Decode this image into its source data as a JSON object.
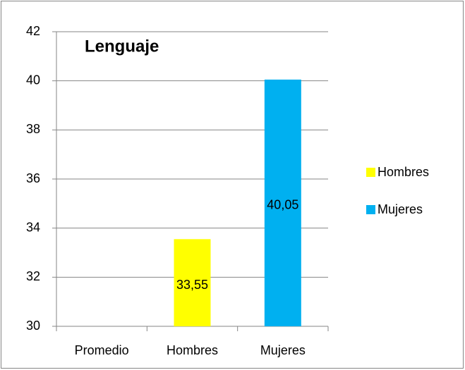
{
  "chart_data": {
    "type": "bar",
    "title": "Lenguaje",
    "categories": [
      "Promedio",
      "Hombres",
      "Mujeres"
    ],
    "series": [
      {
        "name": "Hombres",
        "color": "#ffff00",
        "values": [
          null,
          33.55,
          null
        ],
        "value_labels": [
          null,
          "33,55",
          null
        ]
      },
      {
        "name": "Mujeres",
        "color": "#00b0f0",
        "values": [
          null,
          null,
          40.05
        ],
        "value_labels": [
          null,
          null,
          "40,05"
        ]
      }
    ],
    "ylim": [
      30,
      42
    ],
    "yticks": [
      30,
      32,
      34,
      36,
      38,
      40,
      42
    ],
    "grid": true,
    "legend": "right"
  }
}
